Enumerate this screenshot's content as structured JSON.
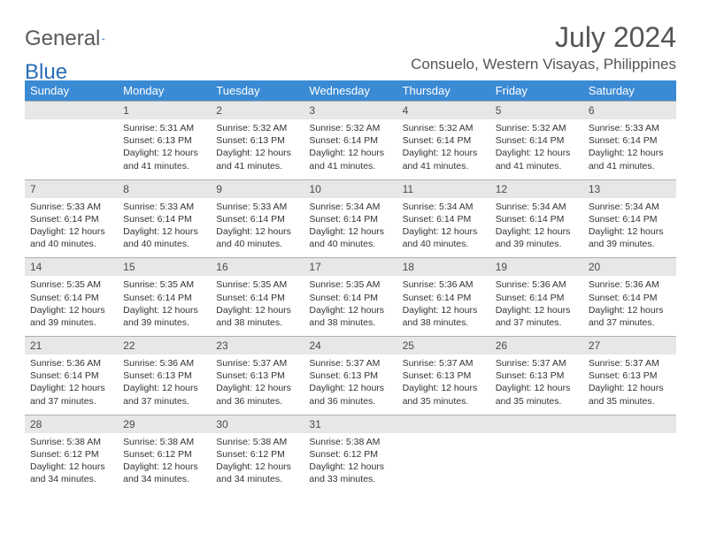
{
  "brand": {
    "general": "General",
    "blue": "Blue"
  },
  "title": "July 2024",
  "location": "Consuelo, Western Visayas, Philippines",
  "colors": {
    "header_bg": "#3b8bd4",
    "header_text": "#ffffff",
    "daynum_bg": "#e7e7e7",
    "text": "#333333",
    "logo_gray": "#5a5a5a",
    "logo_blue": "#2a6db8",
    "page_bg": "#ffffff"
  },
  "typography": {
    "title_fontsize": 32,
    "location_fontsize": 17,
    "dow_fontsize": 13,
    "daynum_fontsize": 12,
    "cell_fontsize": 10.5
  },
  "days_of_week": [
    "Sunday",
    "Monday",
    "Tuesday",
    "Wednesday",
    "Thursday",
    "Friday",
    "Saturday"
  ],
  "weeks": [
    {
      "nums": [
        "",
        "1",
        "2",
        "3",
        "4",
        "5",
        "6"
      ],
      "cells": [
        null,
        {
          "sunrise": "Sunrise: 5:31 AM",
          "sunset": "Sunset: 6:13 PM",
          "day1": "Daylight: 12 hours",
          "day2": "and 41 minutes."
        },
        {
          "sunrise": "Sunrise: 5:32 AM",
          "sunset": "Sunset: 6:13 PM",
          "day1": "Daylight: 12 hours",
          "day2": "and 41 minutes."
        },
        {
          "sunrise": "Sunrise: 5:32 AM",
          "sunset": "Sunset: 6:14 PM",
          "day1": "Daylight: 12 hours",
          "day2": "and 41 minutes."
        },
        {
          "sunrise": "Sunrise: 5:32 AM",
          "sunset": "Sunset: 6:14 PM",
          "day1": "Daylight: 12 hours",
          "day2": "and 41 minutes."
        },
        {
          "sunrise": "Sunrise: 5:32 AM",
          "sunset": "Sunset: 6:14 PM",
          "day1": "Daylight: 12 hours",
          "day2": "and 41 minutes."
        },
        {
          "sunrise": "Sunrise: 5:33 AM",
          "sunset": "Sunset: 6:14 PM",
          "day1": "Daylight: 12 hours",
          "day2": "and 41 minutes."
        }
      ]
    },
    {
      "nums": [
        "7",
        "8",
        "9",
        "10",
        "11",
        "12",
        "13"
      ],
      "cells": [
        {
          "sunrise": "Sunrise: 5:33 AM",
          "sunset": "Sunset: 6:14 PM",
          "day1": "Daylight: 12 hours",
          "day2": "and 40 minutes."
        },
        {
          "sunrise": "Sunrise: 5:33 AM",
          "sunset": "Sunset: 6:14 PM",
          "day1": "Daylight: 12 hours",
          "day2": "and 40 minutes."
        },
        {
          "sunrise": "Sunrise: 5:33 AM",
          "sunset": "Sunset: 6:14 PM",
          "day1": "Daylight: 12 hours",
          "day2": "and 40 minutes."
        },
        {
          "sunrise": "Sunrise: 5:34 AM",
          "sunset": "Sunset: 6:14 PM",
          "day1": "Daylight: 12 hours",
          "day2": "and 40 minutes."
        },
        {
          "sunrise": "Sunrise: 5:34 AM",
          "sunset": "Sunset: 6:14 PM",
          "day1": "Daylight: 12 hours",
          "day2": "and 40 minutes."
        },
        {
          "sunrise": "Sunrise: 5:34 AM",
          "sunset": "Sunset: 6:14 PM",
          "day1": "Daylight: 12 hours",
          "day2": "and 39 minutes."
        },
        {
          "sunrise": "Sunrise: 5:34 AM",
          "sunset": "Sunset: 6:14 PM",
          "day1": "Daylight: 12 hours",
          "day2": "and 39 minutes."
        }
      ]
    },
    {
      "nums": [
        "14",
        "15",
        "16",
        "17",
        "18",
        "19",
        "20"
      ],
      "cells": [
        {
          "sunrise": "Sunrise: 5:35 AM",
          "sunset": "Sunset: 6:14 PM",
          "day1": "Daylight: 12 hours",
          "day2": "and 39 minutes."
        },
        {
          "sunrise": "Sunrise: 5:35 AM",
          "sunset": "Sunset: 6:14 PM",
          "day1": "Daylight: 12 hours",
          "day2": "and 39 minutes."
        },
        {
          "sunrise": "Sunrise: 5:35 AM",
          "sunset": "Sunset: 6:14 PM",
          "day1": "Daylight: 12 hours",
          "day2": "and 38 minutes."
        },
        {
          "sunrise": "Sunrise: 5:35 AM",
          "sunset": "Sunset: 6:14 PM",
          "day1": "Daylight: 12 hours",
          "day2": "and 38 minutes."
        },
        {
          "sunrise": "Sunrise: 5:36 AM",
          "sunset": "Sunset: 6:14 PM",
          "day1": "Daylight: 12 hours",
          "day2": "and 38 minutes."
        },
        {
          "sunrise": "Sunrise: 5:36 AM",
          "sunset": "Sunset: 6:14 PM",
          "day1": "Daylight: 12 hours",
          "day2": "and 37 minutes."
        },
        {
          "sunrise": "Sunrise: 5:36 AM",
          "sunset": "Sunset: 6:14 PM",
          "day1": "Daylight: 12 hours",
          "day2": "and 37 minutes."
        }
      ]
    },
    {
      "nums": [
        "21",
        "22",
        "23",
        "24",
        "25",
        "26",
        "27"
      ],
      "cells": [
        {
          "sunrise": "Sunrise: 5:36 AM",
          "sunset": "Sunset: 6:14 PM",
          "day1": "Daylight: 12 hours",
          "day2": "and 37 minutes."
        },
        {
          "sunrise": "Sunrise: 5:36 AM",
          "sunset": "Sunset: 6:13 PM",
          "day1": "Daylight: 12 hours",
          "day2": "and 37 minutes."
        },
        {
          "sunrise": "Sunrise: 5:37 AM",
          "sunset": "Sunset: 6:13 PM",
          "day1": "Daylight: 12 hours",
          "day2": "and 36 minutes."
        },
        {
          "sunrise": "Sunrise: 5:37 AM",
          "sunset": "Sunset: 6:13 PM",
          "day1": "Daylight: 12 hours",
          "day2": "and 36 minutes."
        },
        {
          "sunrise": "Sunrise: 5:37 AM",
          "sunset": "Sunset: 6:13 PM",
          "day1": "Daylight: 12 hours",
          "day2": "and 35 minutes."
        },
        {
          "sunrise": "Sunrise: 5:37 AM",
          "sunset": "Sunset: 6:13 PM",
          "day1": "Daylight: 12 hours",
          "day2": "and 35 minutes."
        },
        {
          "sunrise": "Sunrise: 5:37 AM",
          "sunset": "Sunset: 6:13 PM",
          "day1": "Daylight: 12 hours",
          "day2": "and 35 minutes."
        }
      ]
    },
    {
      "nums": [
        "28",
        "29",
        "30",
        "31",
        "",
        "",
        ""
      ],
      "cells": [
        {
          "sunrise": "Sunrise: 5:38 AM",
          "sunset": "Sunset: 6:12 PM",
          "day1": "Daylight: 12 hours",
          "day2": "and 34 minutes."
        },
        {
          "sunrise": "Sunrise: 5:38 AM",
          "sunset": "Sunset: 6:12 PM",
          "day1": "Daylight: 12 hours",
          "day2": "and 34 minutes."
        },
        {
          "sunrise": "Sunrise: 5:38 AM",
          "sunset": "Sunset: 6:12 PM",
          "day1": "Daylight: 12 hours",
          "day2": "and 34 minutes."
        },
        {
          "sunrise": "Sunrise: 5:38 AM",
          "sunset": "Sunset: 6:12 PM",
          "day1": "Daylight: 12 hours",
          "day2": "and 33 minutes."
        },
        null,
        null,
        null
      ]
    }
  ]
}
